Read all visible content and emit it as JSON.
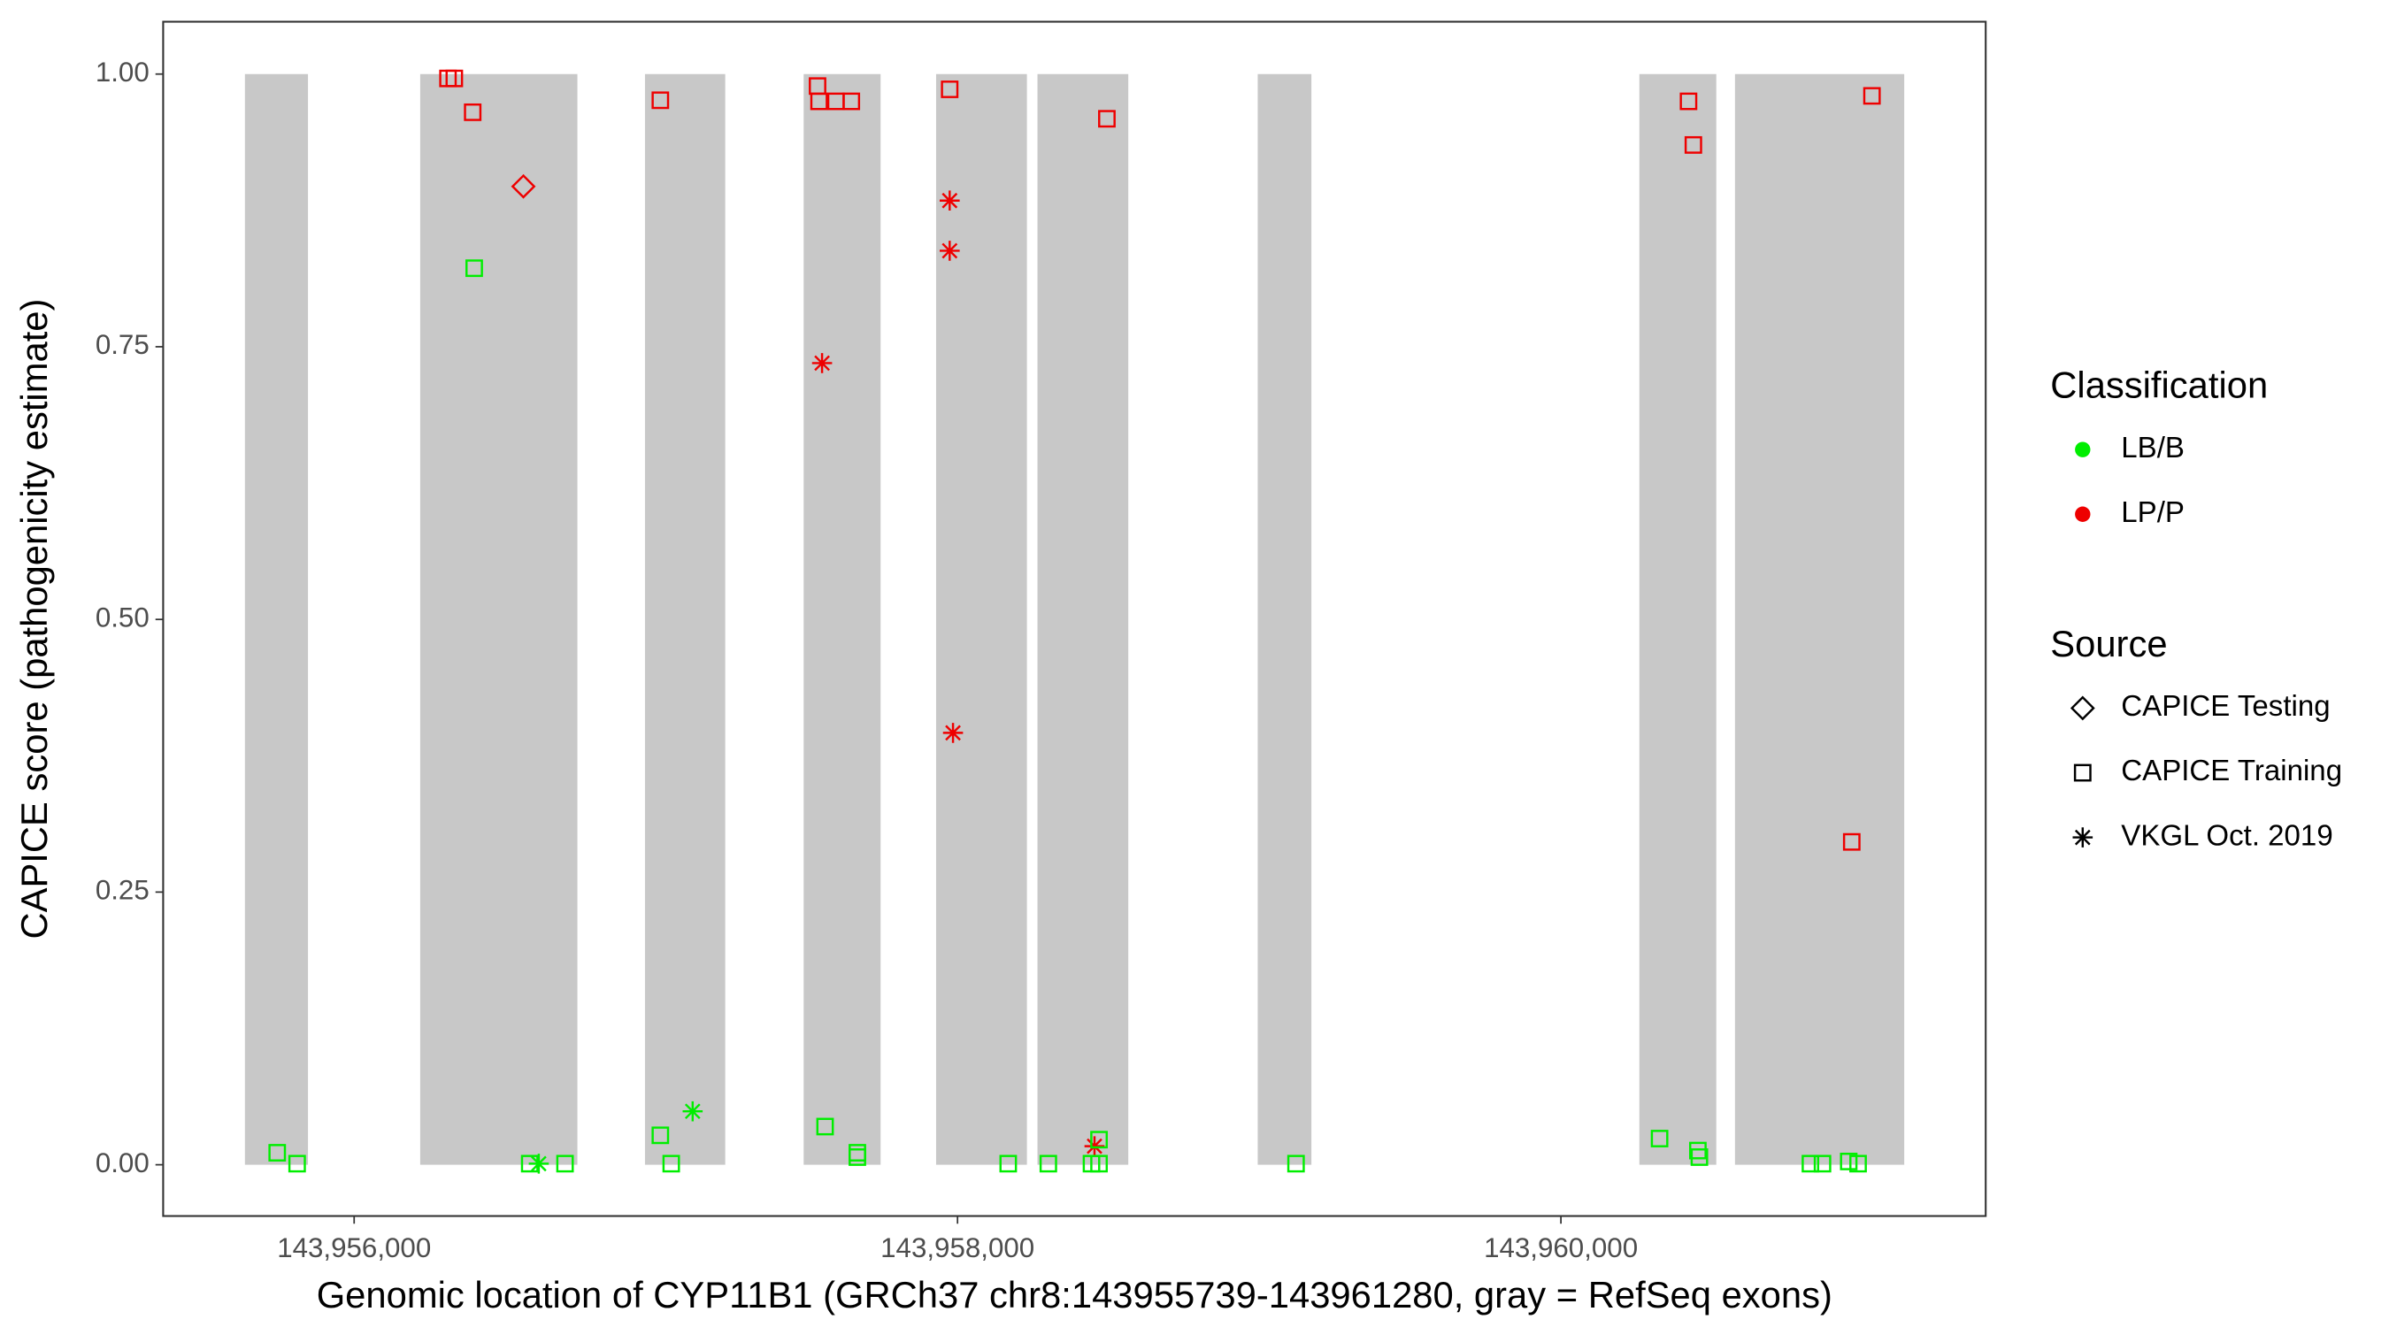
{
  "chart_data": {
    "type": "scatter",
    "xlabel": "Genomic location of CYP11B1 (GRCh37 chr8:143955739-143961280, gray = RefSeq exons)",
    "ylabel": "CAPICE score (pathogenicity estimate)",
    "xlim": [
      143955367,
      143961408
    ],
    "ylim": [
      -0.047,
      1.048
    ],
    "xticks": [
      {
        "value": 143956000,
        "label": "143,956,000"
      },
      {
        "value": 143958000,
        "label": "143,958,000"
      },
      {
        "value": 143960000,
        "label": "143,960,000"
      }
    ],
    "yticks": [
      {
        "value": 0,
        "label": "0.00"
      },
      {
        "value": 0.25,
        "label": "0.25"
      },
      {
        "value": 0.5,
        "label": "0.50"
      },
      {
        "value": 0.75,
        "label": "0.75"
      },
      {
        "value": 1,
        "label": "1.00"
      }
    ],
    "exons": [
      {
        "start": 143955638,
        "end": 143955847
      },
      {
        "start": 143956219,
        "end": 143956740
      },
      {
        "start": 143956964,
        "end": 143957230
      },
      {
        "start": 143957490,
        "end": 143957745
      },
      {
        "start": 143957929,
        "end": 143958230
      },
      {
        "start": 143958265,
        "end": 143958566
      },
      {
        "start": 143958995,
        "end": 143959173
      },
      {
        "start": 143960260,
        "end": 143960515
      },
      {
        "start": 143960577,
        "end": 143961138
      }
    ],
    "exon_color": "#c8c8c8",
    "classification": {
      "title": "Classification",
      "items": [
        {
          "name": "LB/B",
          "color": "#00ee00"
        },
        {
          "name": "LP/P",
          "color": "#ee0000"
        }
      ]
    },
    "source": {
      "title": "Source",
      "items": [
        {
          "name": "CAPICE Testing",
          "shape": "diamond"
        },
        {
          "name": "CAPICE Training",
          "shape": "square"
        },
        {
          "name": "VKGL Oct. 2019",
          "shape": "star"
        }
      ]
    },
    "series": [
      {
        "classification": 1,
        "source": 1,
        "x": [
          143956311,
          143956332,
          143956393,
          143957015,
          143957536,
          143957541,
          143957597,
          143957648,
          143957974,
          143958495,
          143960423,
          143960439,
          143960964,
          143961031
        ],
        "values": [
          0.996,
          0.996,
          0.965,
          0.976,
          0.989,
          0.975,
          0.975,
          0.975,
          0.986,
          0.959,
          0.975,
          0.935,
          0.296,
          0.98
        ]
      },
      {
        "classification": 1,
        "source": 0,
        "x": [
          143956561
        ],
        "values": [
          0.897
        ]
      },
      {
        "classification": 1,
        "source": 2,
        "x": [
          143957551,
          143957974,
          143957974,
          143957985,
          143958454
        ],
        "values": [
          0.735,
          0.884,
          0.838,
          0.396,
          0.017
        ]
      },
      {
        "classification": 0,
        "source": 1,
        "x": [
          143955745,
          143955811,
          143956398,
          143956582,
          143956699,
          143957015,
          143957051,
          143957561,
          143957668,
          143957668,
          143958168,
          143958301,
          143958444,
          143958469,
          143958469,
          143959122,
          143960327,
          143960454,
          143960459,
          143960827,
          143960867,
          143960954,
          143960985
        ],
        "values": [
          0.011,
          0.001,
          0.822,
          0.001,
          0.001,
          0.027,
          0.001,
          0.035,
          0.011,
          0.007,
          0.001,
          0.001,
          0.001,
          0.023,
          0.001,
          0.001,
          0.024,
          0.013,
          0.007,
          0.001,
          0.001,
          0.003,
          0.001
        ]
      },
      {
        "classification": 0,
        "source": 2,
        "x": [
          143956612,
          143957122
        ],
        "values": [
          0.001,
          0.049
        ]
      }
    ]
  }
}
